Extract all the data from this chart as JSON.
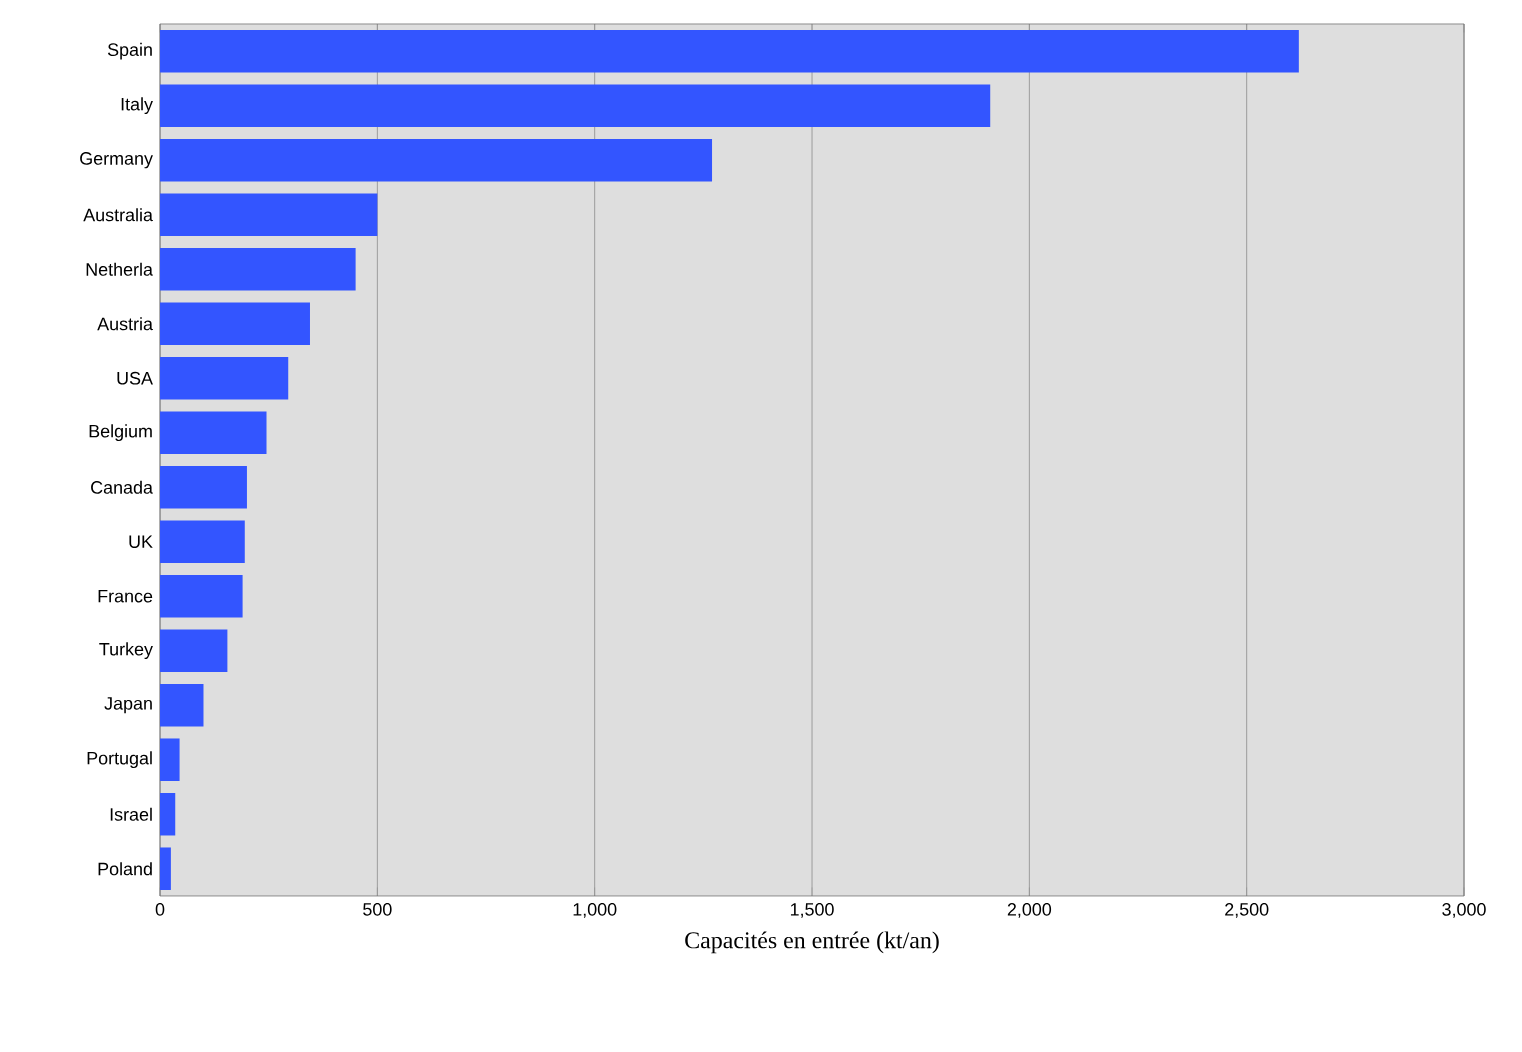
{
  "chart_data": {
    "type": "bar",
    "orientation": "horizontal",
    "xlabel": "Capacités en entrée (kt/an)",
    "categories": [
      "Spain",
      "Italy",
      "Germany",
      "Australia",
      "Netherla",
      "Austria",
      "USA",
      "Belgium",
      "Canada",
      "UK",
      "France",
      "Turkey",
      "Japan",
      "Portugal",
      "Israel",
      "Poland"
    ],
    "values": [
      2620,
      1910,
      1270,
      500,
      450,
      345,
      295,
      245,
      200,
      195,
      190,
      155,
      100,
      45,
      35,
      25
    ],
    "color": "#3355ff",
    "xlim": [
      0,
      3000
    ],
    "xticks": [
      0,
      500,
      {
        "value": 1000,
        "label": "1,000"
      },
      {
        "value": 1500,
        "label": "1,500"
      },
      {
        "value": 2000,
        "label": "2,000"
      },
      {
        "value": 2500,
        "label": "2,500"
      },
      {
        "value": 3000,
        "label": "3,000"
      }
    ],
    "grid": "x"
  }
}
